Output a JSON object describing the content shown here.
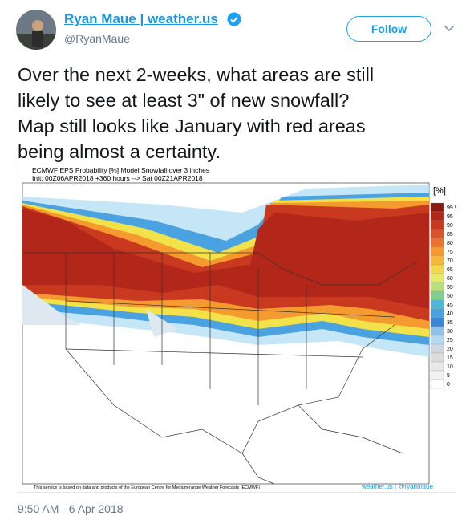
{
  "tweet": {
    "author": {
      "name": "Ryan Maue | weather.us",
      "handle": "@RyanMaue"
    },
    "follow_button": "Follow",
    "text_lines": [
      "Over the next 2-weeks, what areas are still",
      "likely to see at least 3\" of new snowfall?",
      "Map still looks like January with red areas",
      "being almost a certainty."
    ],
    "image": {
      "title_lines": [
        "ECMWF EPS Probability [%] Model Snowfall over 3 inches",
        "Init: 00Z06APR2018 +360 hours --> Sat 00Z21APR2018"
      ],
      "colorbar_unit": "[%]",
      "colorbar_labels": [
        "99.9",
        "95",
        "90",
        "85",
        "80",
        "75",
        "70",
        "65",
        "60",
        "55",
        "50",
        "45",
        "40",
        "35",
        "30",
        "25",
        "20",
        "15",
        "10",
        "5",
        "0"
      ],
      "footer": "This service is based on data and products of the European Centre for Medium-range Weather Forecasts (ECMWF)",
      "credit": "weather.us | @ryanmaue"
    },
    "timestamp": "9:50 AM - 6 Apr 2018"
  }
}
